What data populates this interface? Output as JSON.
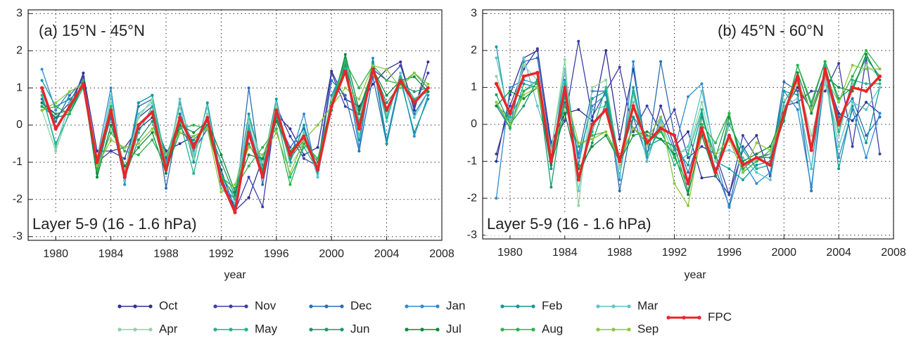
{
  "chart_data": [
    {
      "type": "line",
      "annotation": "(a)  15°N - 45°N",
      "layer_label": "Layer 5-9 (16 - 1.6 hPa)",
      "xlabel": "year",
      "x": [
        1979,
        1980,
        1981,
        1982,
        1983,
        1984,
        1985,
        1986,
        1987,
        1988,
        1989,
        1990,
        1991,
        1992,
        1993,
        1994,
        1995,
        1996,
        1997,
        1998,
        1999,
        2000,
        2001,
        2002,
        2003,
        2004,
        2005,
        2006,
        2007
      ],
      "xlim": [
        1978,
        2008
      ],
      "xticks": [
        1980,
        1984,
        1988,
        1992,
        1996,
        2000,
        2004,
        2008
      ],
      "ylim": [
        -3.1,
        3.1
      ],
      "yticks": [
        -3,
        -2,
        -1,
        0,
        1,
        2,
        3
      ],
      "grid": true,
      "series": [
        {
          "name": "Oct",
          "color": "#2e3192",
          "values": [
            0.6,
            0.3,
            0.4,
            1.4,
            -0.7,
            -0.7,
            -0.6,
            -0.1,
            0.2,
            -0.7,
            -0.5,
            -0.3,
            -0.1,
            -1.2,
            -2.3,
            -1.95,
            -0.9,
            0.3,
            -0.1,
            -0.8,
            -0.6,
            1.45,
            0.7,
            0.5,
            1.1,
            1.5,
            1.7,
            0.4,
            1.7
          ]
        },
        {
          "name": "Nov",
          "color": "#3b3fa5",
          "values": [
            0.5,
            0.2,
            0.6,
            1.3,
            -1.0,
            -0.7,
            -0.9,
            0.2,
            0.5,
            -0.9,
            0.0,
            -0.7,
            -0.1,
            -1.4,
            -2.3,
            -1.4,
            -2.2,
            0.5,
            -0.3,
            -0.9,
            -1.1,
            1.4,
            0.5,
            0.3,
            1.5,
            1.2,
            1.6,
            0.5,
            1.4
          ]
        },
        {
          "name": "Dec",
          "color": "#2a6db5",
          "values": [
            0.7,
            0.1,
            0.8,
            1.2,
            -1.1,
            0.2,
            -1.5,
            0.5,
            0.7,
            -1.7,
            0.3,
            -0.5,
            0.0,
            -1.3,
            -2.2,
            1.0,
            -1.6,
            0.2,
            -0.6,
            -0.1,
            -1.2,
            1.2,
            0.8,
            -0.7,
            1.3,
            -0.5,
            1.3,
            0.3,
            0.9
          ]
        },
        {
          "name": "Jan",
          "color": "#2e8ccf",
          "values": [
            1.5,
            0.4,
            0.9,
            1.1,
            -0.9,
            1.0,
            -1.6,
            0.6,
            0.8,
            -1.3,
            0.6,
            -0.7,
            0.2,
            -1.6,
            -2.0,
            0.0,
            -1.3,
            0.6,
            -0.9,
            0.3,
            -1.4,
            0.8,
            1.6,
            -0.6,
            1.8,
            -0.4,
            1.3,
            -0.3,
            0.8
          ]
        },
        {
          "name": "Feb",
          "color": "#0f9a9a",
          "values": [
            1.2,
            0.5,
            0.7,
            1.0,
            -1.2,
            0.6,
            -1.3,
            0.6,
            0.8,
            -1.0,
            0.5,
            -1.0,
            0.6,
            -1.4,
            -1.9,
            0.3,
            -1.1,
            0.7,
            -1.0,
            0.0,
            -1.3,
            0.7,
            1.7,
            -0.4,
            1.7,
            -0.5,
            1.2,
            -0.2,
            0.7
          ]
        },
        {
          "name": "Mar",
          "color": "#5cc5c8",
          "values": [
            0.9,
            -0.6,
            0.6,
            1.0,
            -1.1,
            0.8,
            -1.5,
            0.3,
            0.6,
            -1.2,
            0.7,
            -0.8,
            0.5,
            -1.7,
            -2.1,
            0.2,
            -1.2,
            0.6,
            -0.9,
            -0.2,
            -1.4,
            0.6,
            1.5,
            -0.3,
            1.6,
            0.1,
            1.4,
            0.2,
            0.9
          ]
        },
        {
          "name": "Apr",
          "color": "#8fd3a8",
          "values": [
            0.4,
            -0.7,
            0.4,
            1.1,
            -0.9,
            0.6,
            -1.2,
            0.2,
            0.7,
            -1.1,
            0.5,
            -0.9,
            0.3,
            -1.4,
            -1.7,
            0.1,
            -1.0,
            0.5,
            -1.1,
            -0.5,
            -1.1,
            0.7,
            1.5,
            0.0,
            1.4,
            0.3,
            1.3,
            0.7,
            1.0
          ]
        },
        {
          "name": "May",
          "color": "#1fb58f",
          "values": [
            0.8,
            -0.5,
            0.3,
            1.0,
            -1.0,
            0.5,
            -1.4,
            -0.2,
            0.5,
            -0.8,
            0.1,
            -1.3,
            0.2,
            -1.3,
            -2.0,
            -0.1,
            -1.3,
            0.3,
            -1.4,
            -0.6,
            -1.2,
            0.6,
            1.8,
            0.1,
            1.6,
            0.2,
            1.3,
            0.7,
            0.9
          ]
        },
        {
          "name": "Jun",
          "color": "#1a9a6a",
          "values": [
            0.5,
            0.3,
            0.4,
            1.2,
            -1.3,
            0.3,
            -1.4,
            -0.4,
            0.1,
            -1.2,
            -0.2,
            -0.4,
            0.0,
            -1.0,
            -1.9,
            -0.5,
            -1.2,
            0.2,
            -0.9,
            -0.4,
            -1.0,
            0.5,
            1.6,
            0.3,
            1.5,
            0.6,
            1.1,
            0.9,
            1.0
          ]
        },
        {
          "name": "Jul",
          "color": "#0a8a3c",
          "values": [
            0.6,
            0.2,
            0.3,
            1.1,
            -1.4,
            0.0,
            -1.1,
            -0.6,
            -0.2,
            -1.3,
            0.0,
            -0.2,
            0.1,
            -0.8,
            -1.8,
            -0.8,
            -0.9,
            0.1,
            -0.7,
            -0.3,
            -1.2,
            0.4,
            1.9,
            0.4,
            1.5,
            0.8,
            1.2,
            1.3,
            0.9
          ]
        },
        {
          "name": "Aug",
          "color": "#2db34a",
          "values": [
            0.4,
            0.5,
            0.3,
            1.2,
            -1.2,
            -0.2,
            -0.7,
            -0.8,
            -0.4,
            -1.1,
            -0.1,
            0.0,
            -0.1,
            -1.4,
            -1.7,
            -1.1,
            -0.6,
            -0.1,
            -1.6,
            -0.5,
            -0.9,
            0.6,
            1.7,
            1.0,
            1.6,
            1.2,
            1.1,
            1.4,
            1.0
          ]
        },
        {
          "name": "Sep",
          "color": "#8dc63f",
          "values": [
            0.4,
            0.6,
            0.9,
            1.1,
            -1.1,
            -0.4,
            -0.6,
            -0.5,
            -0.1,
            -0.8,
            -0.2,
            -0.3,
            -0.1,
            -1.8,
            -1.6,
            -0.6,
            -0.8,
            -0.2,
            -1.3,
            -0.4,
            0.0,
            0.5,
            1.0,
            0.7,
            1.6,
            1.5,
            1.0,
            1.4,
            1.1
          ]
        },
        {
          "name": "FPC",
          "color": "#e8262a",
          "values": [
            1.0,
            -0.1,
            0.5,
            1.1,
            -1.0,
            0.4,
            -1.4,
            0.0,
            0.35,
            -1.2,
            0.2,
            -0.6,
            0.2,
            -1.5,
            -2.35,
            -0.2,
            -1.4,
            0.4,
            -0.8,
            -0.3,
            -1.2,
            0.5,
            1.45,
            -0.1,
            1.5,
            0.4,
            1.2,
            0.6,
            1.0
          ]
        }
      ]
    },
    {
      "type": "line",
      "annotation": "(b)  45°N - 60°N",
      "layer_label": "Layer 5-9 (16 - 1.6 hPa)",
      "xlabel": "year",
      "x": [
        1979,
        1980,
        1981,
        1982,
        1983,
        1984,
        1985,
        1986,
        1987,
        1988,
        1989,
        1990,
        1991,
        1992,
        1993,
        1994,
        1995,
        1996,
        1997,
        1998,
        1999,
        2000,
        2001,
        2002,
        2003,
        2004,
        2005,
        2006,
        2007
      ],
      "xlim": [
        1978,
        2008
      ],
      "xticks": [
        1980,
        1984,
        1988,
        1992,
        1996,
        2000,
        2004,
        2008
      ],
      "ylim": [
        -3.1,
        3.1
      ],
      "yticks": [
        -3,
        -2,
        -1,
        0,
        1,
        2,
        3
      ],
      "grid": true,
      "series": [
        {
          "name": "Oct",
          "color": "#2e3192",
          "values": [
            -1.0,
            0.8,
            1.8,
            2.0,
            -0.5,
            0.3,
            0.4,
            0.1,
            2.0,
            -0.4,
            1.5,
            -0.8,
            0.5,
            -0.6,
            -0.2,
            -1.45,
            -1.4,
            -1.9,
            -0.7,
            -0.3,
            -1.4,
            0.4,
            1.0,
            0.4,
            1.4,
            0.3,
            0.1,
            0.6,
            0.3
          ]
        },
        {
          "name": "Nov",
          "color": "#3b3fa5",
          "values": [
            -0.8,
            0.5,
            1.5,
            2.05,
            -0.6,
            0.1,
            2.25,
            0.2,
            0.9,
            1.55,
            -0.2,
            0.5,
            -0.2,
            0.4,
            -0.9,
            -0.6,
            -0.8,
            -1.9,
            -0.3,
            -0.9,
            -0.8,
            0.5,
            0.6,
            0.9,
            0.9,
            1.65,
            -0.6,
            1.8,
            -0.8
          ]
        },
        {
          "name": "Dec",
          "color": "#2a6db5",
          "values": [
            0.5,
            -0.1,
            1.7,
            1.8,
            -0.7,
            0.6,
            -0.8,
            0.9,
            0.9,
            -1.8,
            0.2,
            -0.9,
            1.7,
            -0.3,
            -1.3,
            -0.2,
            -1.2,
            -2.2,
            -0.6,
            -1.2,
            -1.1,
            1.15,
            0.9,
            -1.8,
            1.6,
            0.2,
            0.7,
            -0.3,
            0.2
          ]
        },
        {
          "name": "Jan",
          "color": "#2e8ccf",
          "values": [
            -2.0,
            1.0,
            1.2,
            1.1,
            -1.2,
            1.2,
            -0.9,
            0.5,
            0.8,
            -1.5,
            1.7,
            -1.0,
            0.2,
            -0.7,
            0.75,
            1.1,
            -0.9,
            -2.25,
            -1.0,
            -1.6,
            -1.3,
            0.9,
            0.4,
            -1.7,
            1.3,
            -0.9,
            0.4,
            -0.9,
            0.3
          ]
        },
        {
          "name": "Feb",
          "color": "#0f9a9a",
          "values": [
            2.1,
            -0.1,
            1.1,
            1.0,
            -1.2,
            1.5,
            -1.1,
            0.7,
            0.9,
            -1.2,
            1.0,
            -0.6,
            -0.4,
            -0.6,
            -1.1,
            0.3,
            -1.0,
            -1.2,
            -1.5,
            -1.1,
            -1.0,
            0.9,
            0.8,
            -1.2,
            1.7,
            -1.2,
            0.5,
            -0.5,
            1.0
          ]
        },
        {
          "name": "Mar",
          "color": "#5cc5c8",
          "values": [
            1.8,
            0.1,
            1.8,
            0.5,
            -0.7,
            1.5,
            -1.8,
            0.4,
            0.5,
            -1.4,
            0.6,
            -1.0,
            0.1,
            -0.9,
            -0.6,
            0.9,
            -0.8,
            -0.7,
            -0.9,
            -1.3,
            -1.5,
            0.5,
            0.7,
            -1.2,
            1.3,
            -0.6,
            0.6,
            0.4,
            1.0
          ]
        },
        {
          "name": "Apr",
          "color": "#8fd3a8",
          "values": [
            1.3,
            0.2,
            1.6,
            1.2,
            -0.7,
            1.75,
            -2.2,
            1.0,
            1.2,
            -1.2,
            0.8,
            -0.6,
            0.0,
            -0.8,
            -0.7,
            0.6,
            -1.0,
            -0.4,
            -1.3,
            -1.0,
            -0.8,
            0.4,
            1.2,
            -0.3,
            1.1,
            -0.3,
            1.1,
            1.6,
            1.3
          ]
        },
        {
          "name": "May",
          "color": "#1fb58f",
          "values": [
            0.5,
            0.2,
            0.9,
            1.2,
            -1.0,
            1.1,
            -1.4,
            -0.2,
            1.0,
            -1.0,
            0.9,
            -0.8,
            -0.1,
            -1.1,
            -0.8,
            0.4,
            -1.3,
            0.0,
            -0.7,
            -1.2,
            -1.1,
            0.6,
            1.2,
            -0.6,
            1.6,
            -0.2,
            1.2,
            1.1,
            1.1
          ]
        },
        {
          "name": "Jun",
          "color": "#1a9a6a",
          "values": [
            0.8,
            0.0,
            0.5,
            1.2,
            -1.7,
            0.8,
            -1.4,
            -0.5,
            0.6,
            -0.9,
            0.2,
            -0.3,
            -0.4,
            -0.6,
            -1.8,
            0.2,
            -0.9,
            0.3,
            -1.2,
            -0.9,
            -0.9,
            0.1,
            1.6,
            0.5,
            1.7,
            0.7,
            1.0,
            1.8,
            1.3
          ]
        },
        {
          "name": "Jul",
          "color": "#0a8a3c",
          "values": [
            0.5,
            0.9,
            0.7,
            1.0,
            -1.1,
            0.3,
            -1.2,
            -0.6,
            -0.3,
            -1.0,
            -0.3,
            -0.2,
            -0.4,
            -0.8,
            -1.9,
            -0.3,
            -1.4,
            0.2,
            -1.0,
            -0.8,
            -0.6,
            0.3,
            1.4,
            0.3,
            1.3,
            1.0,
            0.9,
            1.9,
            1.2
          ]
        },
        {
          "name": "Aug",
          "color": "#2db34a",
          "values": [
            0.6,
            -0.1,
            0.9,
            1.1,
            -1.0,
            0.5,
            -0.6,
            -0.3,
            -0.2,
            -1.0,
            -0.1,
            -0.5,
            -0.2,
            -0.9,
            -1.6,
            0.0,
            -0.5,
            0.3,
            -1.3,
            -1.0,
            -0.7,
            0.2,
            1.6,
            0.6,
            1.7,
            0.6,
            1.3,
            2.0,
            1.5
          ]
        },
        {
          "name": "Sep",
          "color": "#8dc63f",
          "values": [
            0.6,
            0.0,
            0.8,
            1.0,
            -0.9,
            0.9,
            -0.5,
            -0.4,
            -0.2,
            -0.9,
            -0.1,
            -0.4,
            0.2,
            -1.6,
            -2.2,
            -0.2,
            -0.8,
            -0.4,
            -1.3,
            -0.5,
            -0.7,
            0.3,
            1.1,
            0.4,
            1.3,
            0.6,
            1.6,
            1.5,
            1.5
          ]
        },
        {
          "name": "FPC",
          "color": "#e8262a",
          "values": [
            1.1,
            0.3,
            1.3,
            1.4,
            -1.0,
            1.0,
            -1.5,
            0.0,
            0.4,
            -1.0,
            0.5,
            -0.5,
            -0.1,
            -0.3,
            -1.6,
            -0.1,
            -1.3,
            -0.3,
            -1.1,
            -0.9,
            -1.1,
            0.3,
            1.3,
            -0.7,
            1.5,
            0.0,
            1.0,
            0.9,
            1.3
          ]
        }
      ]
    }
  ]
}
